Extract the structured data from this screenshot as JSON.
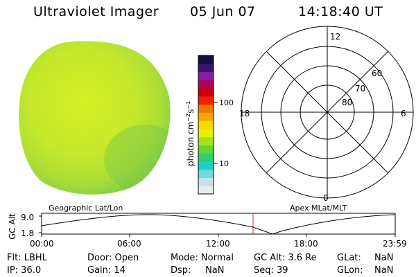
{
  "header": {
    "title": "Ultraviolet Imager",
    "date": "05 Jun 07",
    "time": "14:18:40 UT"
  },
  "colorbar": {
    "unit": "photon cm",
    "ticks": [
      "100",
      "10"
    ],
    "colors": [
      "#e8eef0",
      "#c8e0e8",
      "#70d8e0",
      "#20d0c8",
      "#30d070",
      "#60d830",
      "#a8e020",
      "#e8f000",
      "#f8d800",
      "#f8a800",
      "#f07800",
      "#f02000",
      "#c80000",
      "#b00060",
      "#8020a0",
      "#401070",
      "#101040"
    ]
  },
  "polar": {
    "mlt_labels": [
      "12",
      "18",
      "6",
      "0"
    ],
    "lat_labels": [
      "60",
      "70",
      "80"
    ]
  },
  "timeline": {
    "left_label": "Geographic Lat/Lon",
    "right_label": "Apex  MLat/MLT",
    "yaxis_title": "GC Alt",
    "ymax": "9.0",
    "ymin": "1.8",
    "xticks": [
      "00:00",
      "06:00",
      "12:00",
      "18:00",
      "23:59"
    ]
  },
  "info": {
    "filter": "Flt: LBHL",
    "ip": "IP: 36.0",
    "door": "Door: Open",
    "gain": "Gain: 14",
    "mode": "Mode: Normal",
    "dsp": "Dsp:     NaN",
    "gcalt": "GC Alt: 3.6 Re",
    "seq": "Seq: 39",
    "glat_label": "GLat:",
    "glat_value": "NaN",
    "glon_label": "GLon:",
    "glon_value": "NaN"
  }
}
